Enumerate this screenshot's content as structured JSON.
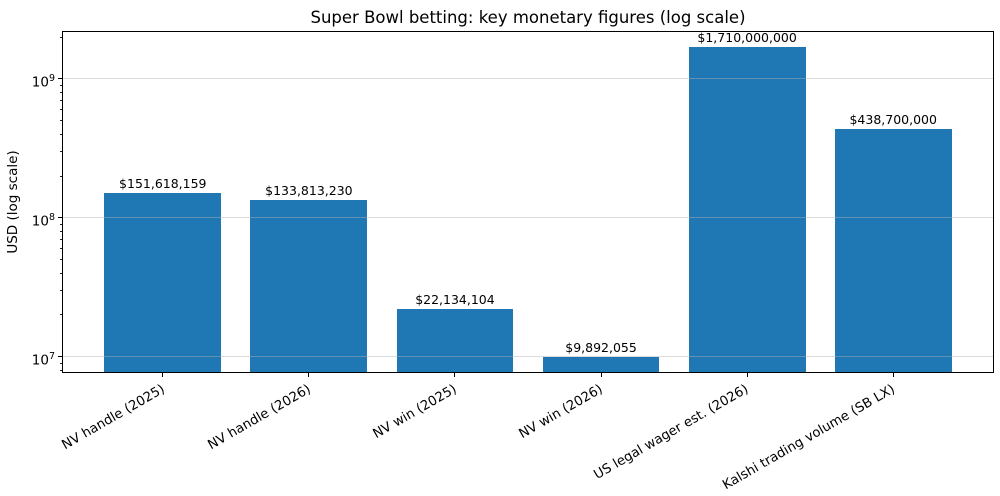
{
  "chart_data": {
    "type": "bar",
    "title": "Super Bowl betting: key monetary figures (log scale)",
    "xlabel": "",
    "ylabel": "USD (log scale)",
    "yscale": "log",
    "ylim": [
      7645000,
      2213000000
    ],
    "categories": [
      "NV handle (2025)",
      "NV handle (2026)",
      "NV win (2025)",
      "NV win (2026)",
      "US legal wager est. (2026)",
      "Kalshi trading volume (SB LX)"
    ],
    "values": [
      151618159,
      133813230,
      22134104,
      9892055,
      1710000000,
      438700000
    ],
    "bar_labels": [
      "$151,618,159",
      "$133,813,230",
      "$22,134,104",
      "$9,892,055",
      "$1,710,000,000",
      "$438,700,000"
    ],
    "ytick_exponents": [
      7,
      8,
      9
    ],
    "bar_color": "#1f77b4",
    "grid": {
      "axis": "y",
      "on": true,
      "above_bars": true
    },
    "legend_position": "none"
  }
}
